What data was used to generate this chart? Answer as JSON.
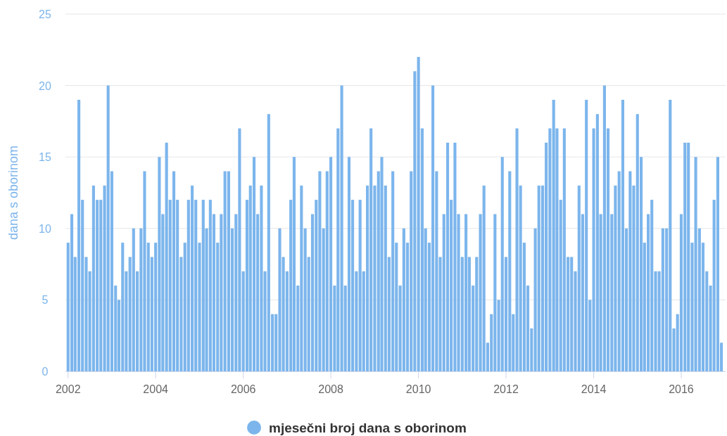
{
  "chart_data": {
    "type": "bar",
    "ylabel": "dana s oborinom",
    "legend": "bottom",
    "grid": "y",
    "xlim": [
      "2001-12-10",
      "2017-01-05"
    ],
    "xticks": [
      "2002",
      "2004",
      "2006",
      "2008",
      "2010",
      "2012",
      "2014",
      "2016"
    ],
    "ylim": [
      0,
      25
    ],
    "yticks": [
      0,
      5,
      10,
      15,
      20,
      25
    ],
    "x": [
      "2002-01",
      "2002-02",
      "2002-03",
      "2002-04",
      "2002-05",
      "2002-06",
      "2002-07",
      "2002-08",
      "2002-09",
      "2002-10",
      "2002-11",
      "2002-12",
      "2003-01",
      "2003-02",
      "2003-03",
      "2003-04",
      "2003-05",
      "2003-06",
      "2003-07",
      "2003-08",
      "2003-09",
      "2003-10",
      "2003-11",
      "2003-12",
      "2004-01",
      "2004-02",
      "2004-03",
      "2004-04",
      "2004-05",
      "2004-06",
      "2004-07",
      "2004-08",
      "2004-09",
      "2004-10",
      "2004-11",
      "2004-12",
      "2005-01",
      "2005-02",
      "2005-03",
      "2005-04",
      "2005-05",
      "2005-06",
      "2005-07",
      "2005-08",
      "2005-09",
      "2005-10",
      "2005-11",
      "2005-12",
      "2006-01",
      "2006-02",
      "2006-03",
      "2006-04",
      "2006-05",
      "2006-06",
      "2006-07",
      "2006-08",
      "2006-09",
      "2006-10",
      "2006-11",
      "2006-12",
      "2007-01",
      "2007-02",
      "2007-03",
      "2007-04",
      "2007-05",
      "2007-06",
      "2007-07",
      "2007-08",
      "2007-09",
      "2007-10",
      "2007-11",
      "2007-12",
      "2008-01",
      "2008-02",
      "2008-03",
      "2008-04",
      "2008-05",
      "2008-06",
      "2008-07",
      "2008-08",
      "2008-09",
      "2008-10",
      "2008-11",
      "2008-12",
      "2009-01",
      "2009-02",
      "2009-03",
      "2009-04",
      "2009-05",
      "2009-06",
      "2009-07",
      "2009-08",
      "2009-09",
      "2009-10",
      "2009-11",
      "2009-12",
      "2010-01",
      "2010-02",
      "2010-03",
      "2010-04",
      "2010-05",
      "2010-06",
      "2010-07",
      "2010-08",
      "2010-09",
      "2010-10",
      "2010-11",
      "2010-12",
      "2011-01",
      "2011-02",
      "2011-03",
      "2011-04",
      "2011-05",
      "2011-06",
      "2011-07",
      "2011-08",
      "2011-09",
      "2011-10",
      "2011-11",
      "2011-12",
      "2012-01",
      "2012-02",
      "2012-03",
      "2012-04",
      "2012-05",
      "2012-06",
      "2012-07",
      "2012-08",
      "2012-09",
      "2012-10",
      "2012-11",
      "2012-12",
      "2013-01",
      "2013-02",
      "2013-03",
      "2013-04",
      "2013-05",
      "2013-06",
      "2013-07",
      "2013-08",
      "2013-09",
      "2013-10",
      "2013-11",
      "2013-12",
      "2014-01",
      "2014-02",
      "2014-03",
      "2014-04",
      "2014-05",
      "2014-06",
      "2014-07",
      "2014-08",
      "2014-09",
      "2014-10",
      "2014-11",
      "2014-12",
      "2015-01",
      "2015-02",
      "2015-03",
      "2015-04",
      "2015-05",
      "2015-06",
      "2015-07",
      "2015-08",
      "2015-09",
      "2015-10",
      "2015-11",
      "2015-12",
      "2016-01",
      "2016-02",
      "2016-03",
      "2016-04",
      "2016-05",
      "2016-06",
      "2016-07",
      "2016-08",
      "2016-09",
      "2016-10",
      "2016-11",
      "2016-12"
    ],
    "series": [
      {
        "name": "mjesečni broj dana s oborinom",
        "color": "#7cb5ec",
        "values": [
          9,
          11,
          8,
          19,
          12,
          8,
          7,
          13,
          12,
          12,
          13,
          20,
          14,
          6,
          5,
          9,
          7,
          8,
          10,
          7,
          10,
          14,
          9,
          8,
          9,
          15,
          11,
          16,
          12,
          14,
          12,
          8,
          9,
          12,
          13,
          12,
          9,
          12,
          10,
          12,
          11,
          9,
          11,
          14,
          14,
          10,
          11,
          17,
          7,
          12,
          13,
          15,
          11,
          13,
          7,
          18,
          4,
          4,
          10,
          8,
          7,
          12,
          15,
          6,
          13,
          10,
          8,
          11,
          12,
          14,
          10,
          14,
          15,
          6,
          17,
          20,
          6,
          15,
          12,
          7,
          12,
          7,
          13,
          17,
          13,
          14,
          15,
          13,
          8,
          14,
          9,
          6,
          10,
          9,
          14,
          21,
          22,
          17,
          10,
          9,
          20,
          14,
          8,
          11,
          16,
          12,
          16,
          11,
          8,
          11,
          8,
          6,
          8,
          11,
          13,
          2,
          4,
          11,
          5,
          15,
          8,
          14,
          4,
          17,
          13,
          9,
          6,
          3,
          10,
          13,
          13,
          16,
          17,
          19,
          17,
          12,
          17,
          8,
          8,
          7,
          13,
          11,
          19,
          5,
          17,
          18,
          11,
          20,
          17,
          11,
          13,
          14,
          19,
          10,
          14,
          13,
          18,
          15,
          9,
          11,
          12,
          7,
          7,
          10,
          10,
          19,
          3,
          4,
          11,
          16,
          16,
          9,
          15,
          10,
          9,
          7,
          6,
          12,
          15,
          2
        ]
      }
    ]
  }
}
